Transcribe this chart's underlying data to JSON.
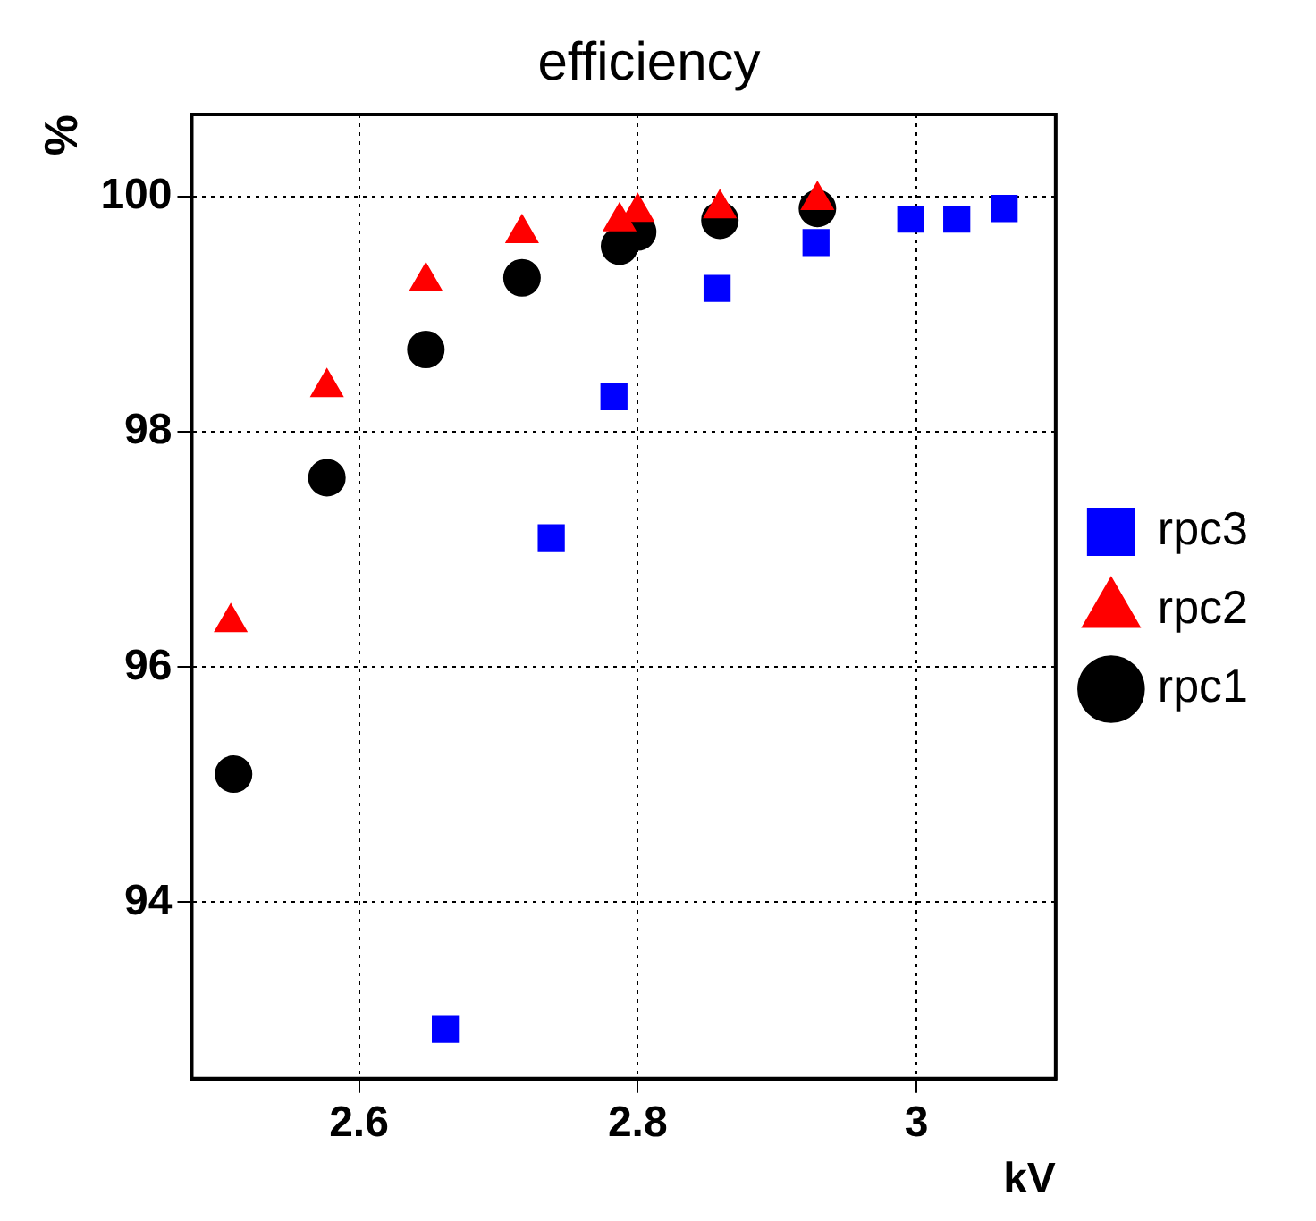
{
  "chart_data": {
    "type": "scatter",
    "title": "efficiency",
    "xlabel": "kV",
    "ylabel": "%",
    "xlim": [
      2.48,
      3.1
    ],
    "xticks": [
      2.6,
      2.8,
      {
        "value": 3,
        "label": "3"
      }
    ],
    "ylim": [
      92.5,
      100.7
    ],
    "yticks": [
      94,
      96,
      98,
      100
    ],
    "grid": true,
    "legend": "right",
    "series": [
      {
        "name": "rpc1",
        "color": "#000000",
        "marker": "circle",
        "x": [
          2.51,
          2.577,
          2.648,
          2.717,
          2.787,
          2.8,
          2.859,
          2.929
        ],
        "values": [
          95.09,
          97.61,
          98.7,
          99.31,
          99.58,
          99.7,
          99.8,
          99.9
        ]
      },
      {
        "name": "rpc2",
        "color": "#ff0000",
        "marker": "triangle",
        "x": [
          2.508,
          2.577,
          2.648,
          2.717,
          2.787,
          2.8,
          2.859,
          2.929
        ],
        "values": [
          96.38,
          98.38,
          99.28,
          99.69,
          99.79,
          99.87,
          99.9,
          99.97
        ]
      },
      {
        "name": "rpc3",
        "color": "#0000ff",
        "marker": "square",
        "x": [
          2.662,
          2.738,
          2.783,
          2.857,
          2.928,
          2.996,
          3.029,
          3.063
        ],
        "values": [
          92.92,
          97.1,
          98.3,
          99.22,
          99.61,
          99.81,
          99.81,
          99.9
        ]
      }
    ]
  }
}
